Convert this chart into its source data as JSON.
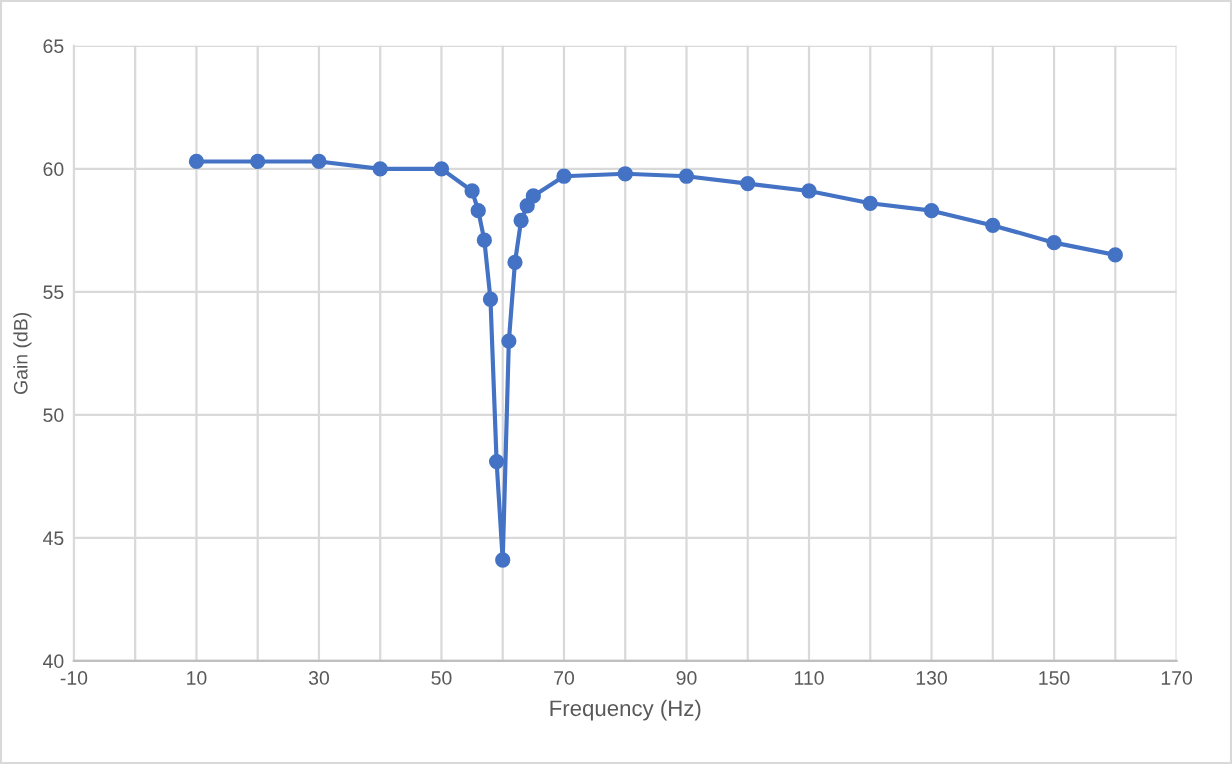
{
  "chart_data": {
    "type": "line",
    "xlabel": "Frequency (Hz)",
    "ylabel": "Gain (dB)",
    "x": [
      10,
      20,
      30,
      40,
      50,
      55,
      56,
      57,
      58,
      59,
      60,
      61,
      62,
      63,
      64,
      65,
      70,
      80,
      90,
      100,
      110,
      120,
      130,
      140,
      150,
      160
    ],
    "series": [
      {
        "color": "#4472c4",
        "values": [
          60.3,
          60.3,
          60.3,
          60.0,
          60.0,
          59.1,
          58.3,
          57.1,
          54.7,
          48.1,
          44.1,
          53.0,
          56.2,
          57.9,
          58.5,
          58.9,
          59.7,
          59.8,
          59.7,
          59.4,
          59.1,
          58.6,
          58.3,
          57.7,
          57.0,
          56.5
        ]
      }
    ],
    "xlim": [
      -10,
      170
    ],
    "ylim": [
      40,
      65
    ],
    "xticks": [
      -10,
      {
        "value": 0,
        "label": null
      },
      10,
      {
        "value": 20,
        "label": null
      },
      30,
      {
        "value": 40,
        "label": null
      },
      50,
      {
        "value": 60,
        "label": null
      },
      70,
      {
        "value": 80,
        "label": null
      },
      90,
      {
        "value": 100,
        "label": null
      },
      110,
      {
        "value": 120,
        "label": null
      },
      130,
      {
        "value": 140,
        "label": null
      },
      150,
      {
        "value": 160,
        "label": null
      },
      170
    ],
    "yticks": [
      40,
      45,
      50,
      55,
      60,
      65
    ],
    "grid": true,
    "marker": "circle",
    "line_style": "solid"
  }
}
